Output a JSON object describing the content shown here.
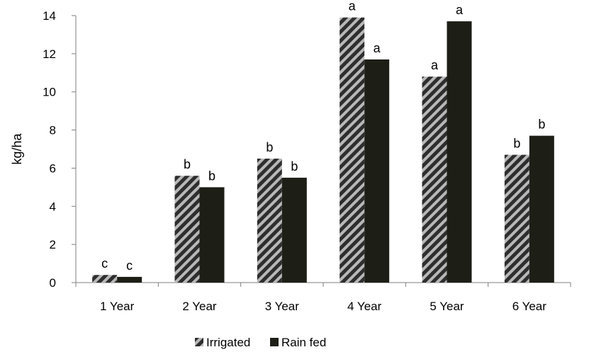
{
  "chart_data": {
    "type": "bar",
    "title": "",
    "xlabel": "",
    "ylabel": "kg/ha",
    "ylim": [
      0,
      14
    ],
    "yticks": [
      0,
      2,
      4,
      6,
      8,
      10,
      12,
      14
    ],
    "grid": false,
    "legend_position": "bottom",
    "categories": [
      "1 Year",
      "2 Year",
      "3 Year",
      "4 Year",
      "5 Year",
      "6 Year"
    ],
    "series": [
      {
        "name": "Irrigated",
        "values": [
          0.4,
          5.6,
          6.5,
          13.9,
          10.8,
          6.7
        ],
        "labels": [
          "c",
          "b",
          "b",
          "a",
          "a",
          "b"
        ],
        "pattern": "diagonal-hatch",
        "color": "#3a3a3a"
      },
      {
        "name": "Rain fed",
        "values": [
          0.3,
          5.0,
          5.5,
          11.7,
          13.7,
          7.7
        ],
        "labels": [
          "c",
          "b",
          "b",
          "a",
          "a",
          "b"
        ],
        "pattern": "solid",
        "color": "#1d1f17"
      }
    ]
  }
}
